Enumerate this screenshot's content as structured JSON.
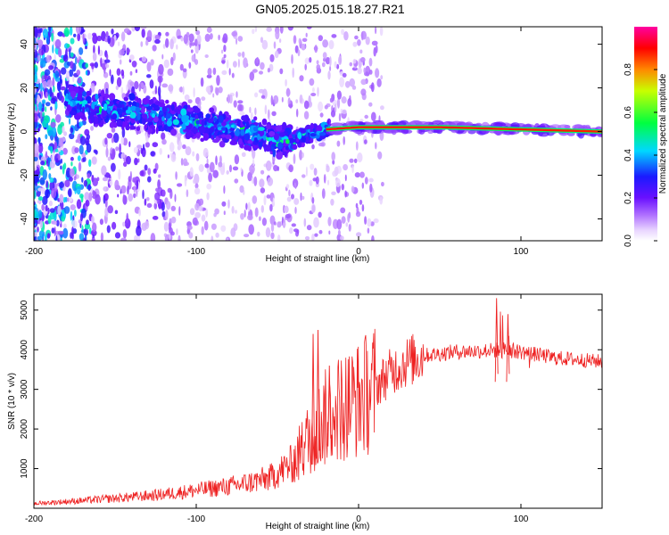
{
  "title": "GN05.2025.015.18.27.R21",
  "chart_data": [
    {
      "type": "heatmap",
      "name": "spectrogram",
      "xlabel": "Height of straight line (km)",
      "ylabel": "Frequency (Hz)",
      "xlim": [
        -200,
        150
      ],
      "ylim": [
        -50,
        48
      ],
      "xticks": [
        -200,
        -100,
        0,
        100
      ],
      "yticks": [
        -40,
        -20,
        0,
        20,
        40
      ],
      "colorbar": {
        "label": "Normalized spectral amplitude",
        "range": [
          0.0,
          1.0
        ],
        "ticks": [
          0.0,
          0.2,
          0.4,
          0.6,
          0.8
        ]
      },
      "ridge": [
        {
          "x": -175,
          "f": 14
        },
        {
          "x": -150,
          "f": 9
        },
        {
          "x": -125,
          "f": 7
        },
        {
          "x": -100,
          "f": 4
        },
        {
          "x": -75,
          "f": 1
        },
        {
          "x": -55,
          "f": -3
        },
        {
          "x": -40,
          "f": -4
        },
        {
          "x": -30,
          "f": -1
        },
        {
          "x": -20,
          "f": 1
        },
        {
          "x": 0,
          "f": 2
        },
        {
          "x": 50,
          "f": 2
        },
        {
          "x": 100,
          "f": 1
        },
        {
          "x": 150,
          "f": 0
        }
      ]
    },
    {
      "type": "line",
      "name": "snr",
      "xlabel": "Height of straight line (km)",
      "ylabel": "SNR (10 * v/v)",
      "xlim": [
        -200,
        150
      ],
      "ylim": [
        0,
        5400
      ],
      "xticks": [
        -200,
        -100,
        0,
        100
      ],
      "yticks": [
        1000,
        2000,
        3000,
        4000,
        5000
      ],
      "color": "#ee2222",
      "envelope": [
        {
          "x": -200,
          "y": 120
        },
        {
          "x": -175,
          "y": 180
        },
        {
          "x": -150,
          "y": 250
        },
        {
          "x": -125,
          "y": 330
        },
        {
          "x": -100,
          "y": 450
        },
        {
          "x": -75,
          "y": 580
        },
        {
          "x": -55,
          "y": 760
        },
        {
          "x": -40,
          "y": 1150
        },
        {
          "x": -30,
          "y": 1800
        },
        {
          "x": -20,
          "y": 2300
        },
        {
          "x": -10,
          "y": 2600
        },
        {
          "x": 0,
          "y": 2750
        },
        {
          "x": 10,
          "y": 3050
        },
        {
          "x": 20,
          "y": 3450
        },
        {
          "x": 30,
          "y": 3700
        },
        {
          "x": 40,
          "y": 3850
        },
        {
          "x": 60,
          "y": 3950
        },
        {
          "x": 80,
          "y": 3980
        },
        {
          "x": 90,
          "y": 4000
        },
        {
          "x": 100,
          "y": 3950
        },
        {
          "x": 120,
          "y": 3800
        },
        {
          "x": 150,
          "y": 3700
        }
      ],
      "spikes": [
        {
          "x": -28,
          "y": 4400
        },
        {
          "x": -25,
          "y": 4500
        },
        {
          "x": -18,
          "y": 3600
        },
        {
          "x": 85,
          "y": 5300
        },
        {
          "x": 92,
          "y": 4900
        }
      ]
    }
  ]
}
